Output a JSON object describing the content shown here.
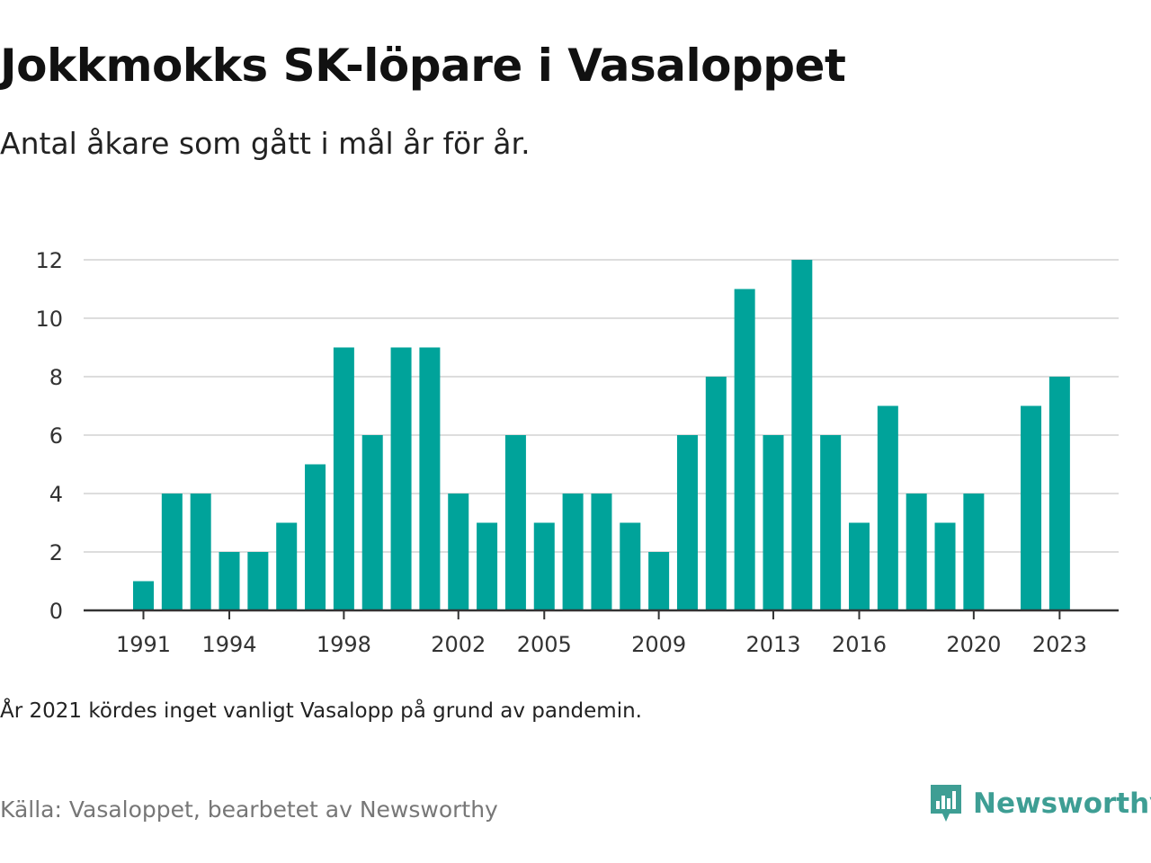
{
  "header": {
    "title": "Jokkmokks SK-löpare i Vasaloppet",
    "subtitle": "Antal åkare som gått i mål år för år."
  },
  "footer": {
    "note": "År 2021 kördes inget vanligt Vasalopp på grund av pandemin.",
    "source": "Källa: Vasaloppet, bearbetet av Newsworthy",
    "brand": "Newsworthy"
  },
  "colors": {
    "bar": "#00a39a",
    "grid": "#dddddd",
    "axis": "#333333",
    "brand": "#3e9e94"
  },
  "chart_data": {
    "type": "bar",
    "categories": [
      1991,
      1992,
      1993,
      1994,
      1995,
      1996,
      1997,
      1998,
      1999,
      2000,
      2001,
      2002,
      2003,
      2004,
      2005,
      2006,
      2007,
      2008,
      2009,
      2010,
      2011,
      2012,
      2013,
      2014,
      2015,
      2016,
      2017,
      2018,
      2019,
      2020,
      2021,
      2022,
      2023
    ],
    "values": [
      1,
      4,
      4,
      2,
      2,
      3,
      5,
      9,
      6,
      9,
      9,
      4,
      3,
      6,
      3,
      4,
      4,
      3,
      2,
      6,
      8,
      11,
      6,
      12,
      6,
      3,
      7,
      4,
      3,
      4,
      null,
      7,
      8
    ],
    "x_tick_labels": [
      "1991",
      "1994",
      "1998",
      "2002",
      "2005",
      "2009",
      "2013",
      "2016",
      "2020",
      "2023"
    ],
    "y_ticks": [
      0,
      2,
      4,
      6,
      8,
      10,
      12
    ],
    "ylim": [
      0,
      12
    ],
    "xlabel": "",
    "ylabel": "",
    "grid": true,
    "legend": "none"
  }
}
